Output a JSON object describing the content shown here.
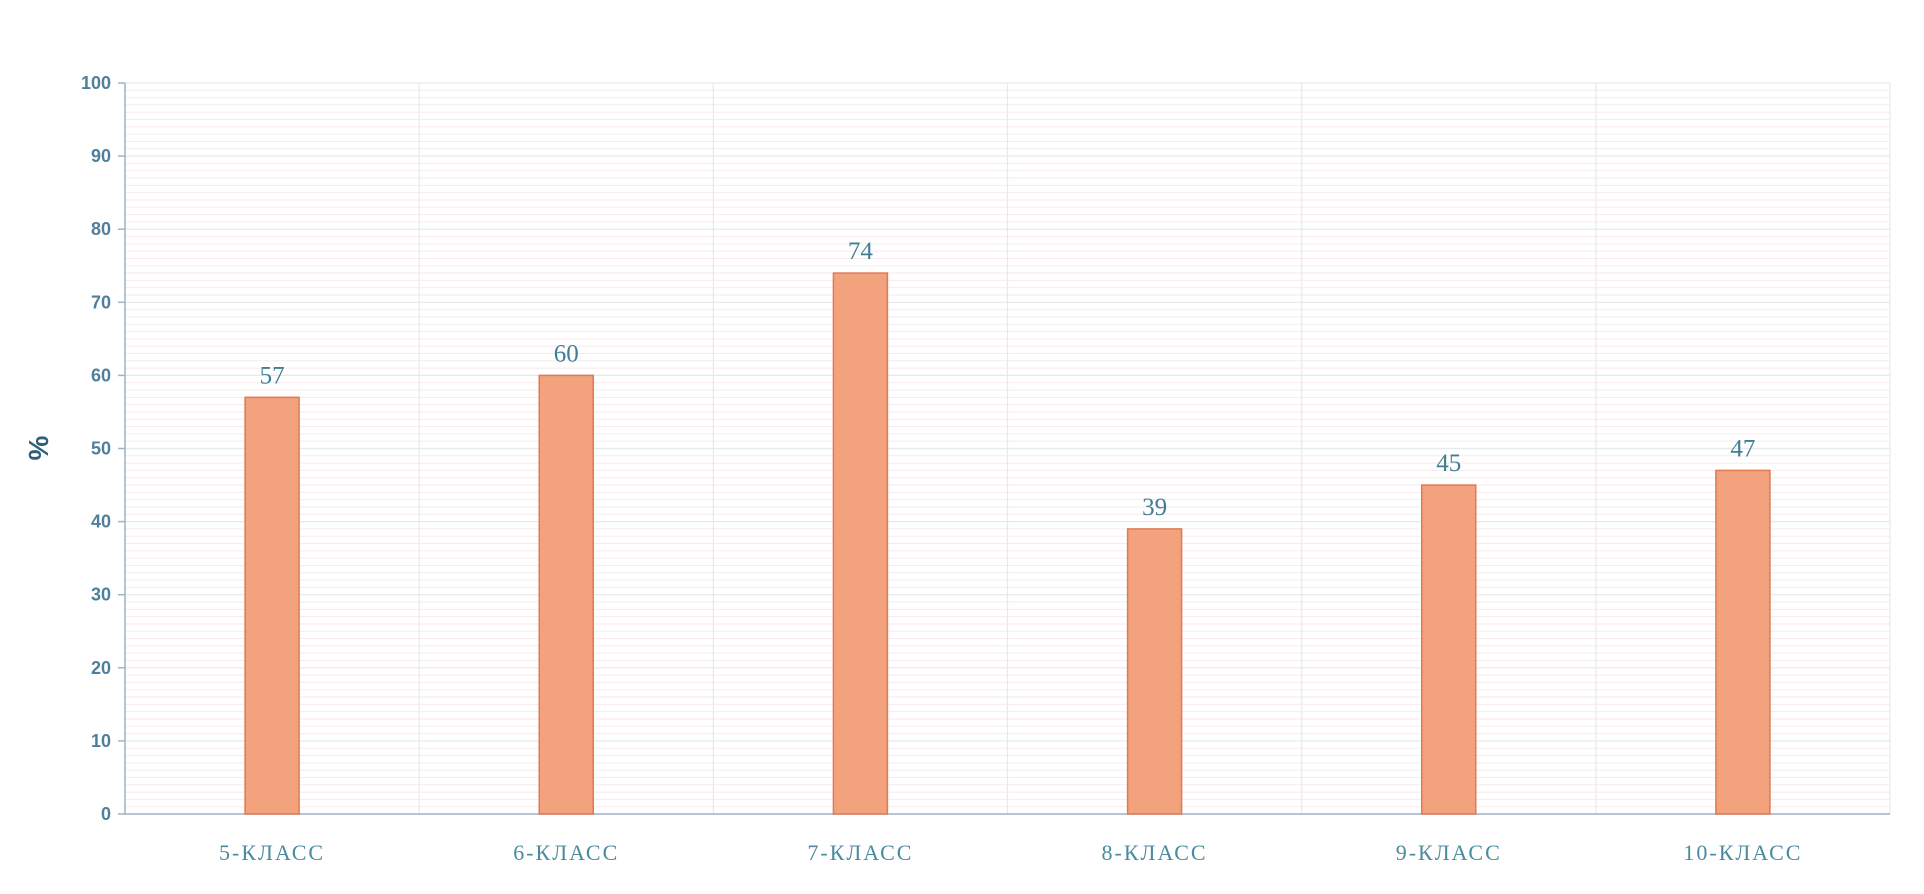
{
  "chart_data": {
    "type": "bar",
    "title": "",
    "xlabel": "",
    "ylabel": "%",
    "categories": [
      "5-КЛАСС",
      "6-КЛАСС",
      "7-КЛАСС",
      "8-КЛАСС",
      "9-КЛАСС",
      "10-КЛАСС"
    ],
    "values": [
      57,
      60,
      74,
      39,
      45,
      47
    ],
    "value_labels": [
      "57",
      "60",
      "74",
      "39",
      "45",
      "47"
    ],
    "yticks": [
      0,
      10,
      20,
      30,
      40,
      50,
      60,
      70,
      80,
      90,
      100
    ],
    "ytick_labels": [
      "0",
      "10",
      "20",
      "30",
      "40",
      "50",
      "60",
      "70",
      "80",
      "90",
      "100"
    ],
    "ylim": [
      0,
      100
    ],
    "grid": true,
    "legend": "none",
    "colors": {
      "bar": "#f3a27e",
      "bar_edge": "#e07a55",
      "axis": "#9db4c2",
      "grid_major": "#e6e9ec",
      "grid_minor": "#f4d9d9",
      "tick_text": "#4f7f9a",
      "category_text": "#4a8ba0",
      "value_text": "#3f7f95",
      "ylabel_text": "#2f5f7a"
    }
  }
}
